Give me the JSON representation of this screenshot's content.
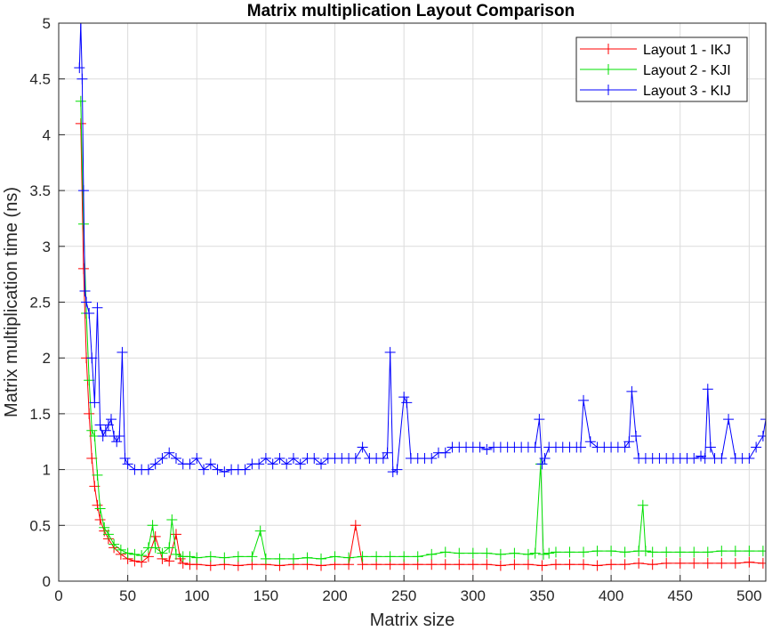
{
  "chart_data": {
    "type": "line",
    "title": "Matrix multiplication Layout Comparison",
    "xlabel": "Matrix size",
    "ylabel": "Matrix multiplication time (ns)",
    "xlim": [
      0,
      512
    ],
    "ylim": [
      0,
      5
    ],
    "xticks": [
      0,
      50,
      100,
      150,
      200,
      250,
      300,
      350,
      400,
      450,
      500
    ],
    "yticks": [
      0,
      0.5,
      1,
      1.5,
      2,
      2.5,
      3,
      3.5,
      4,
      4.5,
      5
    ],
    "xtick_labels": [
      "0",
      "50",
      "100",
      "150",
      "200",
      "250",
      "300",
      "350",
      "400",
      "450",
      "500"
    ],
    "ytick_labels": [
      "0",
      "0.5",
      "1",
      "1.5",
      "2",
      "2.5",
      "3",
      "3.5",
      "4",
      "4.5",
      "5"
    ],
    "grid": true,
    "legend_position": "top-right",
    "marker": "+",
    "series": [
      {
        "name": "Layout 1 - IKJ",
        "color": "#ff0000",
        "x": [
          16,
          18,
          20,
          22,
          24,
          26,
          28,
          30,
          33,
          36,
          40,
          45,
          50,
          55,
          60,
          65,
          70,
          75,
          80,
          85,
          88,
          90,
          95,
          100,
          110,
          120,
          130,
          140,
          150,
          160,
          170,
          180,
          190,
          200,
          210,
          215,
          220,
          230,
          240,
          250,
          260,
          270,
          280,
          290,
          300,
          310,
          320,
          330,
          340,
          350,
          360,
          370,
          380,
          390,
          400,
          410,
          420,
          430,
          440,
          450,
          460,
          470,
          480,
          490,
          500,
          510
        ],
        "y": [
          4.1,
          2.8,
          2.0,
          1.5,
          1.1,
          0.85,
          0.68,
          0.55,
          0.45,
          0.38,
          0.3,
          0.24,
          0.2,
          0.18,
          0.17,
          0.22,
          0.4,
          0.2,
          0.18,
          0.42,
          0.2,
          0.16,
          0.15,
          0.15,
          0.14,
          0.15,
          0.14,
          0.15,
          0.15,
          0.14,
          0.15,
          0.15,
          0.14,
          0.15,
          0.15,
          0.5,
          0.15,
          0.15,
          0.15,
          0.15,
          0.15,
          0.15,
          0.15,
          0.15,
          0.15,
          0.15,
          0.14,
          0.15,
          0.15,
          0.14,
          0.15,
          0.15,
          0.15,
          0.14,
          0.15,
          0.15,
          0.16,
          0.15,
          0.16,
          0.16,
          0.16,
          0.16,
          0.16,
          0.16,
          0.17,
          0.16
        ]
      },
      {
        "name": "Layout 2 - KJI",
        "color": "#00e000",
        "x": [
          16,
          18,
          20,
          22,
          24,
          26,
          28,
          30,
          33,
          36,
          40,
          45,
          50,
          55,
          60,
          65,
          68,
          70,
          75,
          80,
          82,
          85,
          90,
          95,
          100,
          110,
          120,
          130,
          140,
          146,
          150,
          160,
          170,
          180,
          190,
          200,
          210,
          220,
          230,
          240,
          250,
          260,
          270,
          280,
          290,
          300,
          310,
          320,
          330,
          340,
          345,
          349,
          351,
          355,
          360,
          370,
          380,
          390,
          400,
          410,
          420,
          423,
          425,
          430,
          440,
          450,
          460,
          470,
          480,
          490,
          500,
          510
        ],
        "y": [
          4.3,
          3.2,
          2.4,
          1.8,
          1.35,
          1.3,
          0.95,
          0.65,
          0.48,
          0.42,
          0.33,
          0.28,
          0.25,
          0.24,
          0.23,
          0.3,
          0.5,
          0.3,
          0.25,
          0.3,
          0.55,
          0.24,
          0.22,
          0.22,
          0.21,
          0.22,
          0.21,
          0.22,
          0.22,
          0.45,
          0.2,
          0.2,
          0.2,
          0.21,
          0.2,
          0.22,
          0.21,
          0.22,
          0.22,
          0.22,
          0.22,
          0.22,
          0.24,
          0.26,
          0.25,
          0.25,
          0.25,
          0.24,
          0.25,
          0.24,
          0.25,
          1.05,
          0.24,
          0.25,
          0.26,
          0.26,
          0.26,
          0.27,
          0.27,
          0.26,
          0.27,
          0.68,
          0.27,
          0.26,
          0.26,
          0.26,
          0.26,
          0.26,
          0.27,
          0.27,
          0.27,
          0.27
        ]
      },
      {
        "name": "Layout 3 - KIJ",
        "color": "#0000ff",
        "x": [
          15,
          16,
          17,
          18,
          19,
          20,
          22,
          24,
          26,
          28,
          30,
          32,
          34,
          36,
          38,
          40,
          42,
          44,
          46,
          48,
          50,
          55,
          60,
          65,
          70,
          75,
          80,
          85,
          90,
          95,
          100,
          105,
          110,
          115,
          120,
          125,
          130,
          135,
          140,
          145,
          150,
          155,
          160,
          165,
          170,
          175,
          180,
          185,
          190,
          195,
          200,
          205,
          210,
          215,
          220,
          225,
          230,
          235,
          238,
          240,
          242,
          245,
          250,
          252,
          255,
          260,
          265,
          270,
          275,
          280,
          285,
          290,
          295,
          300,
          305,
          310,
          315,
          320,
          325,
          330,
          335,
          340,
          345,
          348,
          350,
          352,
          355,
          360,
          365,
          370,
          375,
          378,
          380,
          385,
          390,
          395,
          400,
          405,
          410,
          413,
          415,
          418,
          420,
          425,
          430,
          435,
          440,
          445,
          450,
          455,
          460,
          465,
          468,
          470,
          472,
          475,
          480,
          485,
          490,
          495,
          500,
          505,
          510,
          512
        ],
        "y": [
          4.6,
          5.0,
          4.5,
          3.5,
          2.6,
          2.5,
          2.4,
          2.0,
          1.6,
          2.45,
          1.4,
          1.3,
          1.35,
          1.4,
          1.45,
          1.3,
          1.25,
          1.3,
          2.05,
          1.1,
          1.05,
          1.0,
          1.0,
          1.0,
          1.05,
          1.1,
          1.15,
          1.1,
          1.05,
          1.05,
          1.1,
          1.0,
          1.05,
          1.0,
          0.98,
          1.0,
          1.0,
          1.0,
          1.05,
          1.05,
          1.1,
          1.05,
          1.1,
          1.05,
          1.1,
          1.05,
          1.1,
          1.1,
          1.05,
          1.1,
          1.1,
          1.1,
          1.1,
          1.1,
          1.2,
          1.1,
          1.1,
          1.1,
          1.15,
          2.05,
          0.98,
          1.0,
          1.65,
          1.6,
          1.1,
          1.1,
          1.1,
          1.1,
          1.15,
          1.15,
          1.2,
          1.2,
          1.2,
          1.2,
          1.2,
          1.18,
          1.2,
          1.2,
          1.2,
          1.2,
          1.2,
          1.2,
          1.2,
          1.45,
          1.05,
          1.1,
          1.2,
          1.2,
          1.2,
          1.2,
          1.2,
          1.2,
          1.62,
          1.25,
          1.2,
          1.2,
          1.2,
          1.2,
          1.2,
          1.25,
          1.7,
          1.3,
          1.1,
          1.1,
          1.1,
          1.1,
          1.1,
          1.1,
          1.1,
          1.1,
          1.1,
          1.12,
          1.1,
          1.72,
          1.2,
          1.1,
          1.1,
          1.45,
          1.1,
          1.1,
          1.1,
          1.2,
          1.3,
          1.45
        ]
      }
    ]
  }
}
